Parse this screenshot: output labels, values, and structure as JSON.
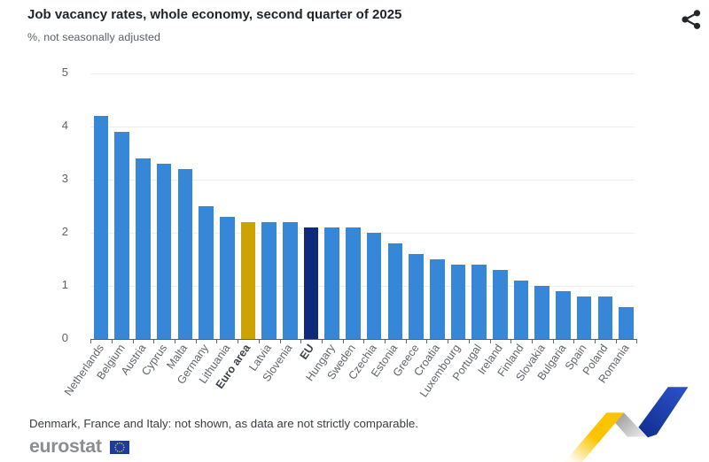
{
  "header": {
    "title": "Job vacancy rates, whole economy, second quarter of 2025",
    "subtitle": "%, not seasonally adjusted",
    "share_icon": "share-icon"
  },
  "chart_data": {
    "type": "bar",
    "title": "Job vacancy rates, whole economy, second quarter of 2025",
    "subtitle": "%, not seasonally adjusted",
    "xlabel": "",
    "ylabel": "%",
    "ylim": [
      0,
      5
    ],
    "yticks": [
      0,
      1,
      2,
      3,
      4,
      5
    ],
    "grid": true,
    "legend": false,
    "categories": [
      "Netherlands",
      "Belgium",
      "Austria",
      "Cyprus",
      "Malta",
      "Germany",
      "Lithuania",
      "Euro area",
      "Latvia",
      "Slovenia",
      "EU",
      "Hungary",
      "Sweden",
      "Czechia",
      "Estonia",
      "Greece",
      "Croatia",
      "Luxembourg",
      "Portugal",
      "Ireland",
      "Finland",
      "Slovakia",
      "Bulgaria",
      "Spain",
      "Poland",
      "Romania"
    ],
    "values": [
      4.2,
      3.9,
      3.4,
      3.3,
      3.2,
      2.5,
      2.3,
      2.2,
      2.2,
      2.2,
      2.1,
      2.1,
      2.1,
      2.0,
      1.8,
      1.6,
      1.5,
      1.4,
      1.4,
      1.3,
      1.1,
      1.0,
      0.9,
      0.8,
      0.8,
      0.6
    ],
    "emphasized": [
      "Euro area",
      "EU"
    ],
    "colors": {
      "bar_default": "#3787d8",
      "bar_euro_area": "#cca302",
      "bar_eu": "#0e2a7d"
    }
  },
  "footer": {
    "note": "Denmark, France and Italy: not shown, as data are not strictly comparable.",
    "logo_text": "eurostat",
    "flag_icon": "eu-flag"
  }
}
